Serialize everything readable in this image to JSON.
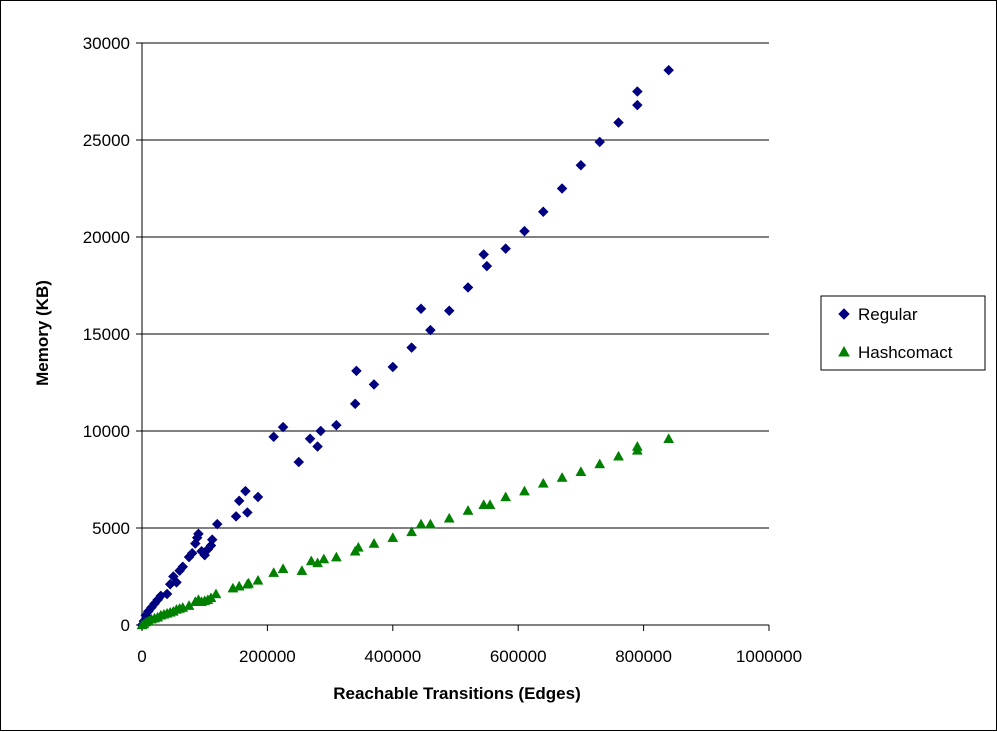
{
  "chart_data": {
    "type": "scatter",
    "title": "",
    "xlabel": "Reachable Transitions (Edges)",
    "ylabel": "Memory (KB)",
    "xlim": [
      0,
      1000000
    ],
    "ylim": [
      0,
      30000
    ],
    "x_ticks": [
      0,
      200000,
      400000,
      600000,
      800000,
      1000000
    ],
    "x_tick_labels": [
      "0",
      "200000",
      "400000",
      "600000",
      "800000",
      "1000000"
    ],
    "y_ticks": [
      0,
      5000,
      10000,
      15000,
      20000,
      25000,
      30000
    ],
    "y_tick_labels": [
      "0",
      "5000",
      "10000",
      "15000",
      "20000",
      "25000",
      "30000"
    ],
    "grid": "horizontal",
    "legend_position": "right",
    "series": [
      {
        "name": "Regular",
        "marker": "diamond",
        "color": "#000080",
        "points": [
          [
            0,
            0
          ],
          [
            3000,
            200
          ],
          [
            6000,
            500
          ],
          [
            10000,
            700
          ],
          [
            15000,
            900
          ],
          [
            20000,
            1100
          ],
          [
            25000,
            1300
          ],
          [
            30000,
            1500
          ],
          [
            40000,
            1600
          ],
          [
            45000,
            2100
          ],
          [
            55000,
            2200
          ],
          [
            50000,
            2500
          ],
          [
            60000,
            2800
          ],
          [
            65000,
            3000
          ],
          [
            75000,
            3500
          ],
          [
            80000,
            3700
          ],
          [
            85000,
            4200
          ],
          [
            88000,
            4500
          ],
          [
            90000,
            4700
          ],
          [
            95000,
            3800
          ],
          [
            100000,
            3600
          ],
          [
            105000,
            3900
          ],
          [
            110000,
            4100
          ],
          [
            112000,
            4400
          ],
          [
            120000,
            5200
          ],
          [
            150000,
            5600
          ],
          [
            155000,
            6400
          ],
          [
            165000,
            6900
          ],
          [
            168000,
            5800
          ],
          [
            185000,
            6600
          ],
          [
            210000,
            9700
          ],
          [
            225000,
            10200
          ],
          [
            250000,
            8400
          ],
          [
            268000,
            9600
          ],
          [
            280000,
            9200
          ],
          [
            285000,
            10000
          ],
          [
            310000,
            10300
          ],
          [
            340000,
            11400
          ],
          [
            342000,
            13100
          ],
          [
            370000,
            12400
          ],
          [
            400000,
            13300
          ],
          [
            430000,
            14300
          ],
          [
            445000,
            16300
          ],
          [
            460000,
            15200
          ],
          [
            490000,
            16200
          ],
          [
            520000,
            17400
          ],
          [
            545000,
            19100
          ],
          [
            550000,
            18500
          ],
          [
            580000,
            19400
          ],
          [
            610000,
            20300
          ],
          [
            640000,
            21300
          ],
          [
            670000,
            22500
          ],
          [
            700000,
            23700
          ],
          [
            730000,
            24900
          ],
          [
            760000,
            25900
          ],
          [
            790000,
            26800
          ],
          [
            790000,
            27500
          ],
          [
            840000,
            28600
          ]
        ]
      },
      {
        "name": "Hashcomact",
        "marker": "triangle",
        "color": "#008000",
        "points": [
          [
            0,
            0
          ],
          [
            3000,
            50
          ],
          [
            6000,
            150
          ],
          [
            10000,
            200
          ],
          [
            15000,
            300
          ],
          [
            20000,
            350
          ],
          [
            25000,
            400
          ],
          [
            30000,
            500
          ],
          [
            35000,
            550
          ],
          [
            40000,
            600
          ],
          [
            45000,
            650
          ],
          [
            50000,
            700
          ],
          [
            55000,
            800
          ],
          [
            60000,
            850
          ],
          [
            65000,
            900
          ],
          [
            75000,
            1000
          ],
          [
            85000,
            1200
          ],
          [
            90000,
            1300
          ],
          [
            95000,
            1200
          ],
          [
            100000,
            1250
          ],
          [
            105000,
            1300
          ],
          [
            110000,
            1400
          ],
          [
            118000,
            1600
          ],
          [
            145000,
            1900
          ],
          [
            155000,
            2000
          ],
          [
            168000,
            2100
          ],
          [
            170000,
            2150
          ],
          [
            185000,
            2300
          ],
          [
            210000,
            2700
          ],
          [
            225000,
            2900
          ],
          [
            255000,
            2800
          ],
          [
            270000,
            3300
          ],
          [
            280000,
            3200
          ],
          [
            290000,
            3400
          ],
          [
            310000,
            3500
          ],
          [
            340000,
            3800
          ],
          [
            345000,
            4000
          ],
          [
            370000,
            4200
          ],
          [
            400000,
            4500
          ],
          [
            430000,
            4800
          ],
          [
            445000,
            5200
          ],
          [
            460000,
            5200
          ],
          [
            490000,
            5500
          ],
          [
            520000,
            5900
          ],
          [
            545000,
            6200
          ],
          [
            555000,
            6200
          ],
          [
            580000,
            6600
          ],
          [
            610000,
            6900
          ],
          [
            640000,
            7300
          ],
          [
            670000,
            7600
          ],
          [
            700000,
            7900
          ],
          [
            730000,
            8300
          ],
          [
            760000,
            8700
          ],
          [
            790000,
            9000
          ],
          [
            790000,
            9200
          ],
          [
            840000,
            9600
          ]
        ]
      }
    ]
  }
}
